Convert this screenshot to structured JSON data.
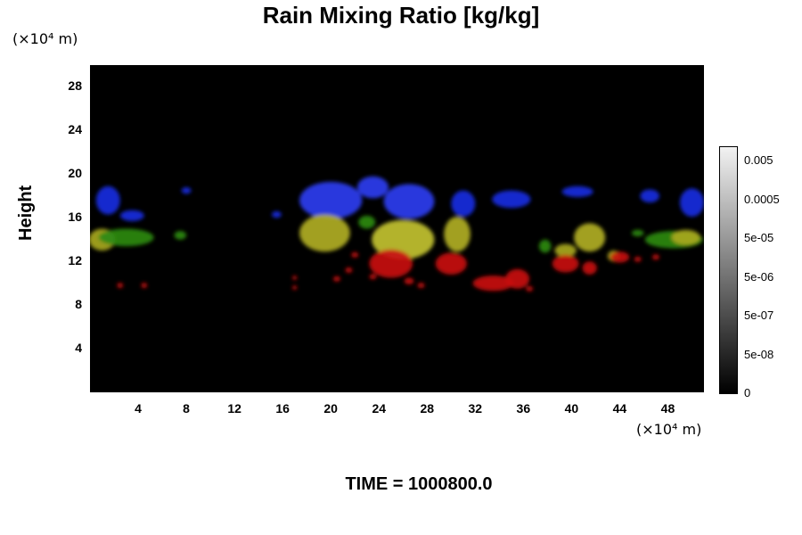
{
  "chart_data": {
    "type": "heatmap",
    "title": "Rain Mixing Ratio [kg/kg]",
    "ylabel": "Height",
    "xlabel": "",
    "x_unit": "(×10⁴ m)",
    "y_unit": "(×10⁴ m)",
    "xlim": [
      0,
      51
    ],
    "ylim": [
      0,
      30
    ],
    "x_ticks": [
      "4",
      "8",
      "12",
      "16",
      "20",
      "24",
      "28",
      "32",
      "36",
      "40",
      "44",
      "48"
    ],
    "y_ticks": [
      "4",
      "8",
      "12",
      "16",
      "20",
      "24",
      "28"
    ],
    "colorbar_labels": [
      "0.005",
      "0.0005",
      "5e-05",
      "5e-06",
      "5e-07",
      "5e-08",
      "0"
    ],
    "blobs": [
      {
        "x": 1.5,
        "y": 17.6,
        "rx": 1.0,
        "ry": 1.3,
        "c": "#1a2de0"
      },
      {
        "x": 3.5,
        "y": 16.2,
        "rx": 1.0,
        "ry": 0.5,
        "c": "#1a2de0"
      },
      {
        "x": 8.0,
        "y": 18.5,
        "rx": 0.4,
        "ry": 0.3,
        "c": "#1a2de0"
      },
      {
        "x": 15.5,
        "y": 16.3,
        "rx": 0.4,
        "ry": 0.3,
        "c": "#1a2de0"
      },
      {
        "x": 20.0,
        "y": 17.6,
        "rx": 2.6,
        "ry": 1.7,
        "c": "#2a3ef0"
      },
      {
        "x": 23.5,
        "y": 18.8,
        "rx": 1.3,
        "ry": 1.0,
        "c": "#2a3ef0"
      },
      {
        "x": 26.5,
        "y": 17.5,
        "rx": 2.1,
        "ry": 1.6,
        "c": "#2a3ef0"
      },
      {
        "x": 31.0,
        "y": 17.3,
        "rx": 1.0,
        "ry": 1.2,
        "c": "#1a2de0"
      },
      {
        "x": 35.0,
        "y": 17.7,
        "rx": 1.6,
        "ry": 0.8,
        "c": "#1a2de0"
      },
      {
        "x": 40.5,
        "y": 18.4,
        "rx": 1.3,
        "ry": 0.5,
        "c": "#1a2de0"
      },
      {
        "x": 46.5,
        "y": 18.0,
        "rx": 0.8,
        "ry": 0.6,
        "c": "#1a2de0"
      },
      {
        "x": 50.0,
        "y": 17.4,
        "rx": 1.0,
        "ry": 1.3,
        "c": "#1a2de0"
      },
      {
        "x": 1.0,
        "y": 14.0,
        "rx": 1.1,
        "ry": 1.0,
        "c": "#a8a81e"
      },
      {
        "x": 3.0,
        "y": 14.2,
        "rx": 2.3,
        "ry": 0.8,
        "c": "#2e8a12"
      },
      {
        "x": 7.5,
        "y": 14.4,
        "rx": 0.5,
        "ry": 0.4,
        "c": "#2e8a12"
      },
      {
        "x": 19.5,
        "y": 14.6,
        "rx": 2.1,
        "ry": 1.7,
        "c": "#b0ae24"
      },
      {
        "x": 23.0,
        "y": 15.6,
        "rx": 0.7,
        "ry": 0.6,
        "c": "#2e8a12"
      },
      {
        "x": 26.0,
        "y": 14.0,
        "rx": 2.6,
        "ry": 1.8,
        "c": "#c2c230"
      },
      {
        "x": 30.5,
        "y": 14.5,
        "rx": 1.1,
        "ry": 1.6,
        "c": "#b0ae24"
      },
      {
        "x": 37.8,
        "y": 13.4,
        "rx": 0.5,
        "ry": 0.6,
        "c": "#2e8a12"
      },
      {
        "x": 39.5,
        "y": 13.0,
        "rx": 0.9,
        "ry": 0.6,
        "c": "#a8a81e"
      },
      {
        "x": 41.5,
        "y": 14.2,
        "rx": 1.3,
        "ry": 1.3,
        "c": "#b0ae24"
      },
      {
        "x": 43.5,
        "y": 12.5,
        "rx": 0.5,
        "ry": 0.5,
        "c": "#a8a81e"
      },
      {
        "x": 45.5,
        "y": 14.6,
        "rx": 0.5,
        "ry": 0.3,
        "c": "#2e8a12"
      },
      {
        "x": 48.5,
        "y": 14.0,
        "rx": 2.4,
        "ry": 0.8,
        "c": "#2e8a12"
      },
      {
        "x": 49.5,
        "y": 14.2,
        "rx": 1.2,
        "ry": 0.7,
        "c": "#a8a81e"
      },
      {
        "x": 25.0,
        "y": 11.8,
        "rx": 1.8,
        "ry": 1.3,
        "c": "#c81010"
      },
      {
        "x": 30.0,
        "y": 11.8,
        "rx": 1.3,
        "ry": 1.0,
        "c": "#c81010"
      },
      {
        "x": 33.5,
        "y": 10.0,
        "rx": 1.7,
        "ry": 0.7,
        "c": "#c81010"
      },
      {
        "x": 35.5,
        "y": 10.4,
        "rx": 1.0,
        "ry": 0.9,
        "c": "#c81010"
      },
      {
        "x": 39.5,
        "y": 11.8,
        "rx": 1.1,
        "ry": 0.8,
        "c": "#c81010"
      },
      {
        "x": 41.5,
        "y": 11.4,
        "rx": 0.6,
        "ry": 0.6,
        "c": "#c81010"
      },
      {
        "x": 44.0,
        "y": 12.4,
        "rx": 0.8,
        "ry": 0.5,
        "c": "#c81010"
      },
      {
        "x": 2.5,
        "y": 9.8,
        "rx": 0.25,
        "ry": 0.25,
        "c": "#c81010"
      },
      {
        "x": 4.5,
        "y": 9.8,
        "rx": 0.25,
        "ry": 0.25,
        "c": "#c81010"
      },
      {
        "x": 17.0,
        "y": 10.5,
        "rx": 0.2,
        "ry": 0.2,
        "c": "#c81010"
      },
      {
        "x": 17.0,
        "y": 9.6,
        "rx": 0.2,
        "ry": 0.2,
        "c": "#c81010"
      },
      {
        "x": 20.5,
        "y": 10.4,
        "rx": 0.3,
        "ry": 0.25,
        "c": "#c81010"
      },
      {
        "x": 21.5,
        "y": 11.2,
        "rx": 0.3,
        "ry": 0.25,
        "c": "#c81010"
      },
      {
        "x": 22.0,
        "y": 12.6,
        "rx": 0.3,
        "ry": 0.25,
        "c": "#c81010"
      },
      {
        "x": 23.5,
        "y": 10.6,
        "rx": 0.3,
        "ry": 0.25,
        "c": "#c81010"
      },
      {
        "x": 26.5,
        "y": 10.2,
        "rx": 0.4,
        "ry": 0.3,
        "c": "#c81010"
      },
      {
        "x": 27.5,
        "y": 9.8,
        "rx": 0.3,
        "ry": 0.25,
        "c": "#c81010"
      },
      {
        "x": 36.5,
        "y": 9.5,
        "rx": 0.3,
        "ry": 0.25,
        "c": "#c81010"
      },
      {
        "x": 47.0,
        "y": 12.4,
        "rx": 0.3,
        "ry": 0.25,
        "c": "#c81010"
      },
      {
        "x": 45.5,
        "y": 12.2,
        "rx": 0.3,
        "ry": 0.25,
        "c": "#c81010"
      }
    ]
  },
  "footer": {
    "time_label": "TIME = 1000800.0"
  }
}
